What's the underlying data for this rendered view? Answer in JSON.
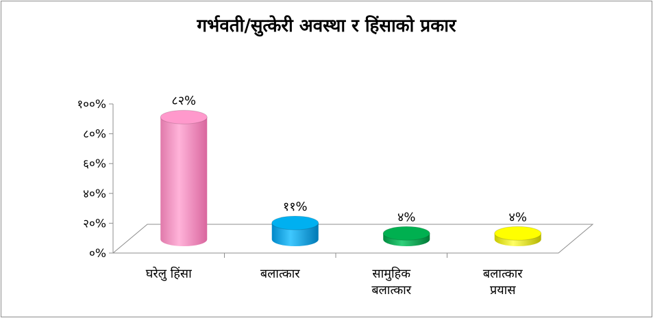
{
  "chart_data": {
    "type": "bar",
    "title": "गर्भवती/सुत्केरी अवस्था र हिंसाको प्रकार",
    "categories": [
      "घरेलु हिंसा",
      "बलात्कार",
      "सामुहिक बलात्कार",
      "बलात्कार प्रयास"
    ],
    "values": [
      82,
      11,
      4,
      4
    ],
    "data_labels": [
      "८२%",
      "११%",
      "४%",
      "४%"
    ],
    "yticks": [
      "०%",
      "२०%",
      "४०%",
      "६०%",
      "८०%",
      "१००%"
    ],
    "ylim": [
      0,
      100
    ],
    "colors": [
      "#ff99cc",
      "#00b0f0",
      "#00b050",
      "#ffff00"
    ],
    "grid": false,
    "legend": "none",
    "shape": "cylinder"
  }
}
